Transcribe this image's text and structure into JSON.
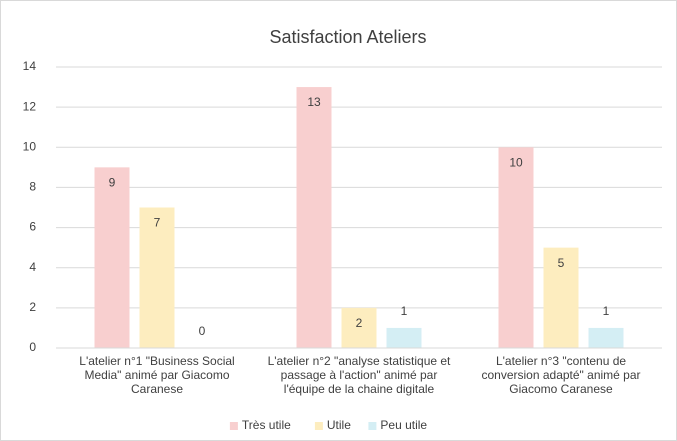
{
  "chart_data": {
    "type": "bar",
    "title": "Satisfaction Ateliers",
    "categories": [
      "L'atelier n°1 \"Business Social Media\" animé par Giacomo Caranese",
      "L'atelier n°2 \"analyse statistique et passage à l'action\" animé par l'équipe de la chaine digitale",
      "L'atelier n°3 \"contenu de conversion adapté\" animé par Giacomo Caranese"
    ],
    "series": [
      {
        "name": "Très utile",
        "color": "#f8cfcf",
        "values": [
          9,
          13,
          10
        ]
      },
      {
        "name": "Utile",
        "color": "#fdedbf",
        "values": [
          7,
          2,
          5
        ]
      },
      {
        "name": "Peu utile",
        "color": "#d4eef4",
        "values": [
          0,
          1,
          1
        ]
      }
    ],
    "ylim": [
      0,
      14
    ],
    "yticks": [
      0,
      2,
      4,
      6,
      8,
      10,
      12,
      14
    ],
    "grid": true,
    "legend": "bottom"
  }
}
